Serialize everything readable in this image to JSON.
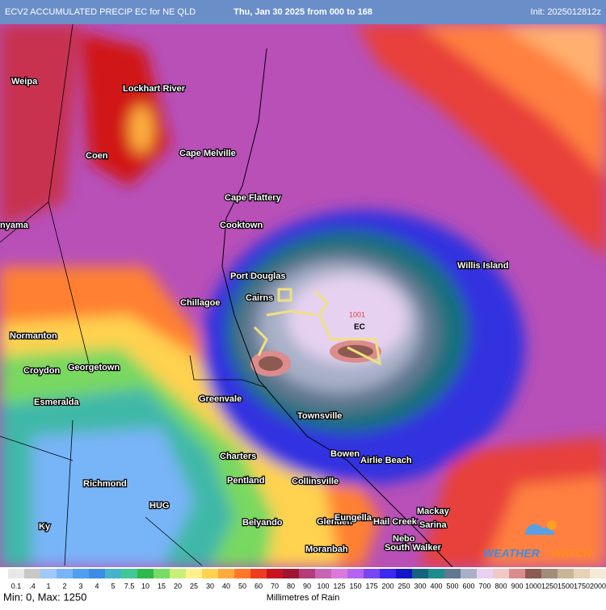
{
  "header": {
    "left": "ECV2 ACCUMULATED PRECIP EC for NE QLD",
    "center": "Thu, Jan 30 2025 from 000 to 168",
    "right": "Init: 2025012812z"
  },
  "places": [
    "Weipa",
    "Lockhart River",
    "Coen",
    "Cape Melville",
    "Cape Flattery",
    "Cooktown",
    "nyama",
    "Port Douglas",
    "Cairns",
    "Chillagoe",
    "Normanton",
    "Croydon",
    "Georgetown",
    "Esmeralda",
    "Greenvale",
    "Townsville",
    "Willis Island",
    "Charters",
    "Bowen",
    "Airlie Beach",
    "Pentland",
    "Collinsville",
    "Richmond",
    "HUG",
    "Ky",
    "Belyando",
    "Glenden",
    "Eungella",
    "Hail Creek",
    "Mackay",
    "Sarina",
    "Nebo",
    "Moranbah",
    "South Walker"
  ],
  "annotations": {
    "pressure": "1001",
    "center": "EC"
  },
  "logo": {
    "part1": "WEATHER",
    "part2": "WATCH"
  },
  "legend": {
    "labels": [
      "0.1",
      ".4",
      "1",
      "2",
      "3",
      "4",
      "5",
      "7.5",
      "10",
      "15",
      "20",
      "25",
      "30",
      "40",
      "50",
      "60",
      "70",
      "80",
      "90",
      "100",
      "125",
      "150",
      "175",
      "200",
      "250",
      "300",
      "400",
      "500",
      "600",
      "700",
      "800",
      "900",
      "1000",
      "1250",
      "1500",
      "1750",
      "2000"
    ],
    "colors": [
      "#e8e8e8",
      "#c8c8c8",
      "#a0c8f8",
      "#78b4f8",
      "#50a0f0",
      "#3c8ce6",
      "#46b4c8",
      "#40c896",
      "#30b84c",
      "#78dc64",
      "#c8f078",
      "#fff08c",
      "#ffd250",
      "#ffaa3c",
      "#ff7828",
      "#f03c1e",
      "#c8141e",
      "#a01432",
      "#b43c78",
      "#c864b4",
      "#dc78dc",
      "#b464f0",
      "#7846f0",
      "#3c28f0",
      "#1414c8",
      "#14647d",
      "#1e8c8c",
      "#607890",
      "#a8b0c8",
      "#e6d2f0",
      "#f0c8c8",
      "#dc8c8c",
      "#8c5a50",
      "#a08c78",
      "#c8b496",
      "#e6d2b4",
      "#f5ead8"
    ],
    "stats": "Min: 0, Max: 1250",
    "unit": "Millimetres of Rain"
  }
}
